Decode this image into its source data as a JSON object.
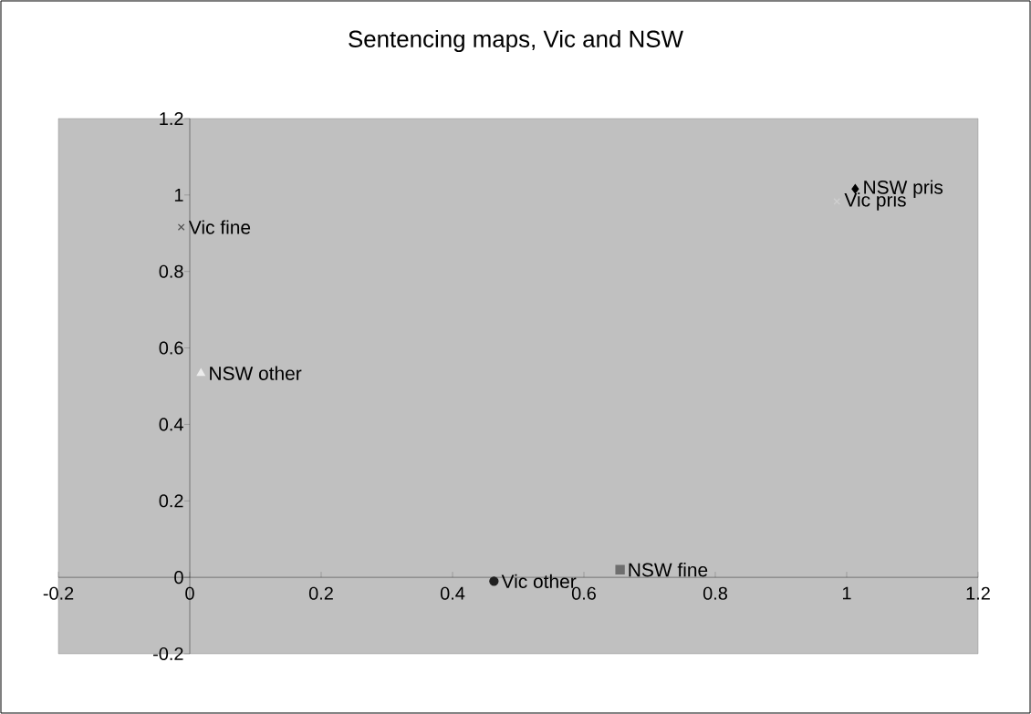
{
  "chart_data": {
    "type": "scatter",
    "title": "Sentencing maps, Vic and NSW",
    "xlim": [
      -0.2,
      1.2
    ],
    "ylim": [
      -0.2,
      1.2
    ],
    "xticks": [
      -0.2,
      0,
      0.2,
      0.4,
      0.6,
      0.8,
      1,
      1.2
    ],
    "yticks": [
      -0.2,
      0,
      0.2,
      0.4,
      0.6,
      0.8,
      1,
      1.2
    ],
    "grid": false,
    "legend": false,
    "series": [
      {
        "name": "NSW pris",
        "color": "#000000",
        "marker": "diamond",
        "x": [
          1.013
        ],
        "values": [
          1.016
        ]
      },
      {
        "name": "Vic pris",
        "color": "#d0d0d0",
        "marker": "cross",
        "x": [
          0.985
        ],
        "values": [
          0.983
        ]
      },
      {
        "name": "Vic fine",
        "color": "#505050",
        "marker": "cross",
        "x": [
          -0.013
        ],
        "values": [
          0.916
        ]
      },
      {
        "name": "NSW other",
        "color": "#ececec",
        "marker": "triangle",
        "x": [
          0.017
        ],
        "values": [
          0.534
        ]
      },
      {
        "name": "Vic other",
        "color": "#202020",
        "marker": "circle",
        "x": [
          0.463
        ],
        "values": [
          -0.01
        ]
      },
      {
        "name": "NSW fine",
        "color": "#6e6e6e",
        "marker": "square",
        "x": [
          0.655
        ],
        "values": [
          0.02
        ]
      }
    ]
  }
}
